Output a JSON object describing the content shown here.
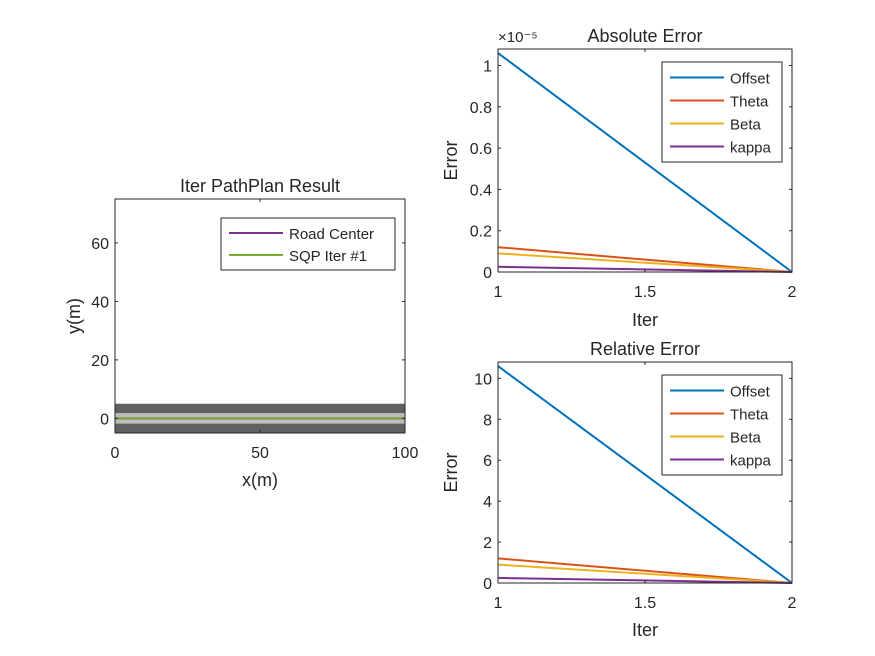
{
  "chart_data": [
    {
      "type": "line",
      "title": "Iter PathPlan Result",
      "xlabel": "x(m)",
      "ylabel": "y(m)",
      "xlim": [
        0,
        100
      ],
      "ylim": [
        -5,
        75
      ],
      "xticks": [
        0,
        50,
        100
      ],
      "yticks": [
        0,
        20,
        40,
        60
      ],
      "legend_position": "top-right",
      "road_band": {
        "outer": [
          -5,
          5
        ],
        "inner": [
          -1.8,
          1.8
        ],
        "outer_color": "#606060",
        "inner_color": "#bdbdbd"
      },
      "series": [
        {
          "name": "Road Center",
          "color": "#7E2F8E",
          "x": [
            0,
            100
          ],
          "y": [
            0,
            0
          ]
        },
        {
          "name": "SQP Iter #1",
          "color": "#77AC30",
          "x": [
            0,
            100
          ],
          "y": [
            0,
            0
          ]
        }
      ]
    },
    {
      "type": "line",
      "title": "Absolute Error",
      "xlabel": "Iter",
      "ylabel": "Error",
      "exponent_label": "×10⁻⁵",
      "xlim": [
        1,
        2
      ],
      "ylim": [
        0,
        1.08
      ],
      "xticks": [
        1,
        1.5,
        2
      ],
      "yticks": [
        0,
        0.2,
        0.4,
        0.6,
        0.8,
        1
      ],
      "legend_position": "top-right",
      "series": [
        {
          "name": "Offset",
          "color": "#0072BD",
          "x": [
            1,
            2
          ],
          "y": [
            1.06,
            0
          ]
        },
        {
          "name": "Theta",
          "color": "#D95319",
          "x": [
            1,
            2
          ],
          "y": [
            0.12,
            0
          ]
        },
        {
          "name": "Beta",
          "color": "#EDB120",
          "x": [
            1,
            2
          ],
          "y": [
            0.09,
            0
          ]
        },
        {
          "name": "kappa",
          "color": "#7E2F8E",
          "x": [
            1,
            2
          ],
          "y": [
            0.025,
            0
          ]
        }
      ]
    },
    {
      "type": "line",
      "title": "Relative Error",
      "xlabel": "Iter",
      "ylabel": "Error",
      "xlim": [
        1,
        2
      ],
      "ylim": [
        0,
        10.8
      ],
      "xticks": [
        1,
        1.5,
        2
      ],
      "yticks": [
        0,
        2,
        4,
        6,
        8,
        10
      ],
      "legend_position": "top-right",
      "series": [
        {
          "name": "Offset",
          "color": "#0072BD",
          "x": [
            1,
            2
          ],
          "y": [
            10.6,
            0
          ]
        },
        {
          "name": "Theta",
          "color": "#D95319",
          "x": [
            1,
            2
          ],
          "y": [
            1.2,
            0
          ]
        },
        {
          "name": "Beta",
          "color": "#EDB120",
          "x": [
            1,
            2
          ],
          "y": [
            0.9,
            0
          ]
        },
        {
          "name": "kappa",
          "color": "#7E2F8E",
          "x": [
            1,
            2
          ],
          "y": [
            0.25,
            0
          ]
        }
      ]
    }
  ]
}
